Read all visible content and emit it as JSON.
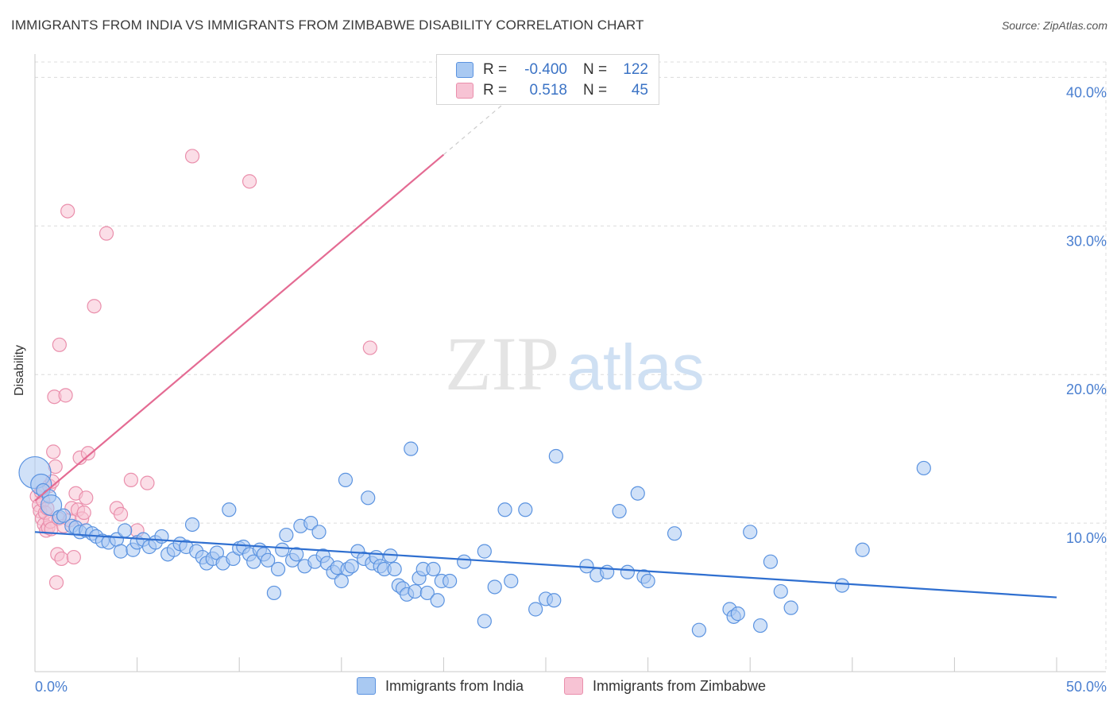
{
  "title": "IMMIGRANTS FROM INDIA VS IMMIGRANTS FROM ZIMBABWE DISABILITY CORRELATION CHART",
  "source": "Source: ZipAtlas.com",
  "watermark": {
    "zip": "ZIP",
    "atlas": "atlas"
  },
  "colors": {
    "india": "#5b93e0",
    "india_fill": "#a9c9f2",
    "india_line": "#2f6fd0",
    "zimbabwe": "#ea8fac",
    "zimbabwe_fill": "#f7c3d4",
    "zimbabwe_line": "#e46b93",
    "tick_label": "#4a7fd0",
    "grid": "#dcdcdc"
  },
  "legend": {
    "r_label": "R =",
    "n_label": "N =",
    "india": {
      "r": "-0.400",
      "n": "122"
    },
    "zimbabwe": {
      "r": "0.518",
      "n": "45"
    }
  },
  "bottom_legend": {
    "india": "Immigrants from India",
    "zimbabwe": "Immigrants from Zimbabwe"
  },
  "chart_data": {
    "type": "scatter",
    "title": "IMMIGRANTS FROM INDIA VS IMMIGRANTS FROM ZIMBABWE DISABILITY CORRELATION CHART",
    "xlabel": "",
    "ylabel": "Disability",
    "xlim": [
      0,
      50
    ],
    "ylim": [
      0,
      42
    ],
    "x_tick_labels": [
      "0.0%",
      "50.0%"
    ],
    "y_ticks": [
      10,
      20,
      30,
      40
    ],
    "y_tick_labels": [
      "10.0%",
      "20.0%",
      "30.0%",
      "40.0%"
    ],
    "grid": true,
    "series": [
      {
        "name": "Immigrants from India",
        "r": -0.4,
        "n": 122,
        "trend": {
          "x": [
            0,
            50
          ],
          "y": [
            9.4,
            5.0
          ]
        },
        "points": [
          {
            "x": 0.0,
            "y": 13.4,
            "big": 2
          },
          {
            "x": 0.3,
            "y": 12.6,
            "big": 1
          },
          {
            "x": 0.4,
            "y": 12.2
          },
          {
            "x": 0.7,
            "y": 11.8
          },
          {
            "x": 0.8,
            "y": 11.2,
            "big": 1
          },
          {
            "x": 1.2,
            "y": 10.4
          },
          {
            "x": 1.4,
            "y": 10.5
          },
          {
            "x": 1.8,
            "y": 9.8
          },
          {
            "x": 2.0,
            "y": 9.7
          },
          {
            "x": 2.2,
            "y": 9.4
          },
          {
            "x": 2.5,
            "y": 9.5
          },
          {
            "x": 2.8,
            "y": 9.3
          },
          {
            "x": 3.0,
            "y": 9.1
          },
          {
            "x": 3.3,
            "y": 8.8
          },
          {
            "x": 3.6,
            "y": 8.7
          },
          {
            "x": 4.0,
            "y": 8.9
          },
          {
            "x": 4.2,
            "y": 8.1
          },
          {
            "x": 4.4,
            "y": 9.5
          },
          {
            "x": 4.8,
            "y": 8.2
          },
          {
            "x": 5.0,
            "y": 8.7
          },
          {
            "x": 5.3,
            "y": 8.9
          },
          {
            "x": 5.6,
            "y": 8.4
          },
          {
            "x": 5.9,
            "y": 8.7
          },
          {
            "x": 6.2,
            "y": 9.1
          },
          {
            "x": 6.5,
            "y": 7.9
          },
          {
            "x": 6.8,
            "y": 8.2
          },
          {
            "x": 7.1,
            "y": 8.6
          },
          {
            "x": 7.4,
            "y": 8.4
          },
          {
            "x": 7.7,
            "y": 9.9
          },
          {
            "x": 7.9,
            "y": 8.1
          },
          {
            "x": 8.2,
            "y": 7.7
          },
          {
            "x": 8.4,
            "y": 7.3
          },
          {
            "x": 8.7,
            "y": 7.6
          },
          {
            "x": 8.9,
            "y": 8.0
          },
          {
            "x": 9.2,
            "y": 7.3
          },
          {
            "x": 9.5,
            "y": 10.9
          },
          {
            "x": 9.7,
            "y": 7.6
          },
          {
            "x": 10.0,
            "y": 8.3
          },
          {
            "x": 10.2,
            "y": 8.4
          },
          {
            "x": 10.5,
            "y": 7.9
          },
          {
            "x": 10.7,
            "y": 7.4
          },
          {
            "x": 11.0,
            "y": 8.2
          },
          {
            "x": 11.2,
            "y": 7.9
          },
          {
            "x": 11.4,
            "y": 7.5
          },
          {
            "x": 11.7,
            "y": 5.3
          },
          {
            "x": 11.9,
            "y": 6.9
          },
          {
            "x": 12.1,
            "y": 8.2
          },
          {
            "x": 12.3,
            "y": 9.2
          },
          {
            "x": 12.6,
            "y": 7.5
          },
          {
            "x": 12.8,
            "y": 7.9
          },
          {
            "x": 13.0,
            "y": 9.8
          },
          {
            "x": 13.2,
            "y": 7.1
          },
          {
            "x": 13.5,
            "y": 10.0
          },
          {
            "x": 13.7,
            "y": 7.4
          },
          {
            "x": 13.9,
            "y": 9.4
          },
          {
            "x": 14.1,
            "y": 7.8
          },
          {
            "x": 14.3,
            "y": 7.3
          },
          {
            "x": 14.6,
            "y": 6.7
          },
          {
            "x": 14.8,
            "y": 7.0
          },
          {
            "x": 15.0,
            "y": 6.1
          },
          {
            "x": 15.2,
            "y": 12.9
          },
          {
            "x": 15.3,
            "y": 6.9
          },
          {
            "x": 15.5,
            "y": 7.1
          },
          {
            "x": 15.8,
            "y": 8.1
          },
          {
            "x": 16.1,
            "y": 7.6
          },
          {
            "x": 16.3,
            "y": 11.7
          },
          {
            "x": 16.5,
            "y": 7.3
          },
          {
            "x": 16.7,
            "y": 7.7
          },
          {
            "x": 16.9,
            "y": 7.1
          },
          {
            "x": 17.1,
            "y": 6.9
          },
          {
            "x": 17.4,
            "y": 7.8
          },
          {
            "x": 17.6,
            "y": 6.9
          },
          {
            "x": 17.8,
            "y": 5.8
          },
          {
            "x": 18.0,
            "y": 5.6
          },
          {
            "x": 18.2,
            "y": 5.2
          },
          {
            "x": 18.4,
            "y": 15.0
          },
          {
            "x": 18.6,
            "y": 5.4
          },
          {
            "x": 18.8,
            "y": 6.3
          },
          {
            "x": 19.0,
            "y": 6.9
          },
          {
            "x": 19.2,
            "y": 5.3
          },
          {
            "x": 19.5,
            "y": 6.9
          },
          {
            "x": 19.7,
            "y": 4.8
          },
          {
            "x": 19.9,
            "y": 6.1
          },
          {
            "x": 20.3,
            "y": 6.1
          },
          {
            "x": 21.0,
            "y": 7.4
          },
          {
            "x": 22.0,
            "y": 8.1
          },
          {
            "x": 22.5,
            "y": 5.7
          },
          {
            "x": 23.0,
            "y": 10.9
          },
          {
            "x": 24.0,
            "y": 10.9
          },
          {
            "x": 22.0,
            "y": 3.4
          },
          {
            "x": 23.3,
            "y": 6.1
          },
          {
            "x": 24.5,
            "y": 4.2
          },
          {
            "x": 25.0,
            "y": 4.9
          },
          {
            "x": 25.4,
            "y": 4.8
          },
          {
            "x": 25.5,
            "y": 14.5
          },
          {
            "x": 27.0,
            "y": 7.1
          },
          {
            "x": 27.5,
            "y": 6.5
          },
          {
            "x": 28.0,
            "y": 6.7
          },
          {
            "x": 28.6,
            "y": 10.8
          },
          {
            "x": 29.0,
            "y": 6.7
          },
          {
            "x": 29.5,
            "y": 12.0
          },
          {
            "x": 29.8,
            "y": 6.4
          },
          {
            "x": 30.0,
            "y": 6.1
          },
          {
            "x": 31.3,
            "y": 9.3
          },
          {
            "x": 32.5,
            "y": 2.8
          },
          {
            "x": 34.0,
            "y": 4.2
          },
          {
            "x": 34.2,
            "y": 3.7
          },
          {
            "x": 34.4,
            "y": 3.9
          },
          {
            "x": 35.0,
            "y": 9.4
          },
          {
            "x": 35.5,
            "y": 3.1
          },
          {
            "x": 36.0,
            "y": 7.4
          },
          {
            "x": 36.5,
            "y": 5.4
          },
          {
            "x": 37.0,
            "y": 4.3
          },
          {
            "x": 39.5,
            "y": 5.8
          },
          {
            "x": 40.5,
            "y": 8.2
          },
          {
            "x": 43.5,
            "y": 13.7
          }
        ]
      },
      {
        "name": "Immigrants from Zimbabwe",
        "r": 0.518,
        "n": 45,
        "trend": {
          "x": [
            0,
            20.0
          ],
          "y": [
            11.5,
            34.8
          ]
        },
        "trend_dashed": {
          "x": [
            20.0,
            23.0
          ],
          "y": [
            34.8,
            38.3
          ]
        },
        "points": [
          {
            "x": 0.1,
            "y": 11.8
          },
          {
            "x": 0.2,
            "y": 11.2
          },
          {
            "x": 0.25,
            "y": 10.8
          },
          {
            "x": 0.3,
            "y": 12.1
          },
          {
            "x": 0.35,
            "y": 10.3
          },
          {
            "x": 0.4,
            "y": 11.5
          },
          {
            "x": 0.45,
            "y": 9.9
          },
          {
            "x": 0.5,
            "y": 10.7
          },
          {
            "x": 0.55,
            "y": 9.5
          },
          {
            "x": 0.6,
            "y": 11.0
          },
          {
            "x": 0.65,
            "y": 9.7
          },
          {
            "x": 0.7,
            "y": 12.5
          },
          {
            "x": 0.75,
            "y": 10.1
          },
          {
            "x": 0.8,
            "y": 9.6
          },
          {
            "x": 0.85,
            "y": 12.8
          },
          {
            "x": 0.9,
            "y": 14.8
          },
          {
            "x": 0.95,
            "y": 18.5
          },
          {
            "x": 1.0,
            "y": 13.8
          },
          {
            "x": 1.05,
            "y": 6.0
          },
          {
            "x": 1.1,
            "y": 7.9
          },
          {
            "x": 1.15,
            "y": 10.3
          },
          {
            "x": 1.2,
            "y": 22.0
          },
          {
            "x": 1.3,
            "y": 7.6
          },
          {
            "x": 1.4,
            "y": 9.8
          },
          {
            "x": 1.5,
            "y": 18.6
          },
          {
            "x": 1.6,
            "y": 31.0
          },
          {
            "x": 1.7,
            "y": 10.2
          },
          {
            "x": 1.8,
            "y": 11.0
          },
          {
            "x": 1.9,
            "y": 7.7
          },
          {
            "x": 2.0,
            "y": 12.0
          },
          {
            "x": 2.1,
            "y": 10.9
          },
          {
            "x": 2.2,
            "y": 14.4
          },
          {
            "x": 2.3,
            "y": 10.3
          },
          {
            "x": 2.4,
            "y": 10.7
          },
          {
            "x": 2.5,
            "y": 11.7
          },
          {
            "x": 2.6,
            "y": 14.7
          },
          {
            "x": 2.9,
            "y": 24.6
          },
          {
            "x": 3.5,
            "y": 29.5
          },
          {
            "x": 4.0,
            "y": 11.0
          },
          {
            "x": 4.2,
            "y": 10.6
          },
          {
            "x": 4.7,
            "y": 12.9
          },
          {
            "x": 5.0,
            "y": 9.5
          },
          {
            "x": 5.5,
            "y": 12.7
          },
          {
            "x": 7.7,
            "y": 34.7
          },
          {
            "x": 10.5,
            "y": 33.0
          },
          {
            "x": 16.4,
            "y": 21.8
          }
        ]
      }
    ]
  }
}
